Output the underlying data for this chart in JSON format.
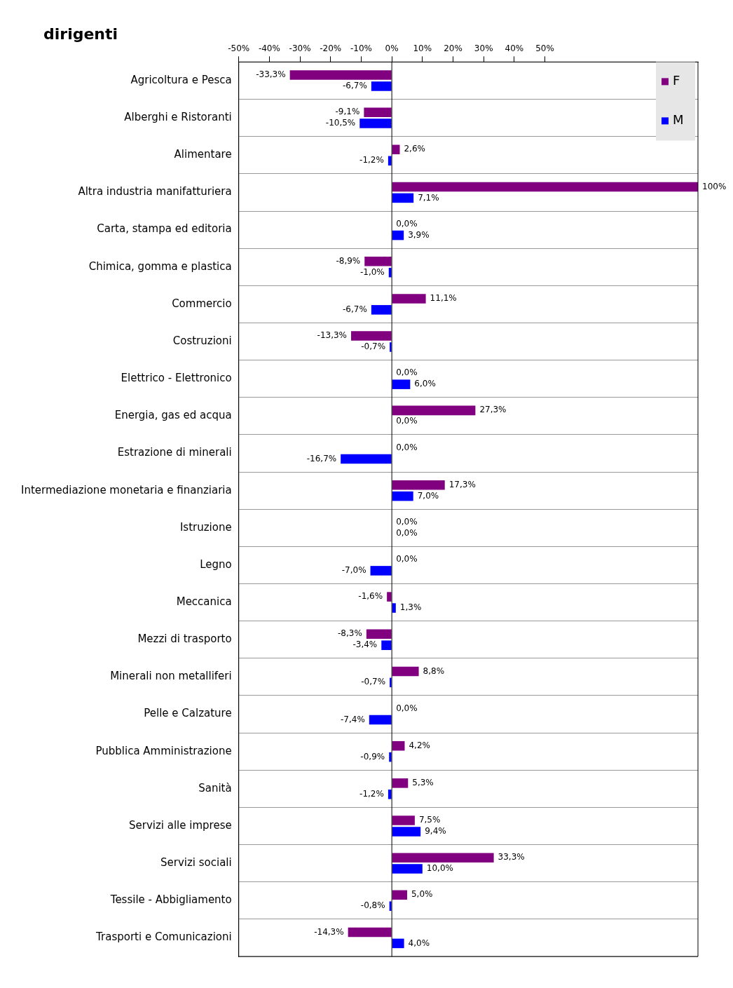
{
  "chart_data": {
    "type": "bar",
    "orientation": "horizontal",
    "title": "dirigenti",
    "categories": [
      "Agricoltura e Pesca",
      "Alberghi e Ristoranti",
      "Alimentare",
      "Altra industria manifatturiera",
      "Carta, stampa ed editoria",
      "Chimica, gomma e plastica",
      "Commercio",
      "Costruzioni",
      "Elettrico - Elettronico",
      "Energia, gas ed acqua",
      "Estrazione di minerali",
      "Intermediazione monetaria e finanziaria",
      "Istruzione",
      "Legno",
      "Meccanica",
      "Mezzi di trasporto",
      "Minerali non metalliferi",
      "Pelle e Calzature",
      "Pubblica Amministrazione",
      "Sanità",
      "Servizi alle imprese",
      "Servizi sociali",
      "Tessile - Abbigliamento",
      "Trasporti e Comunicazioni"
    ],
    "series": [
      {
        "name": "F",
        "color": "#800080",
        "values": [
          -33.3,
          -9.1,
          2.6,
          100,
          0.0,
          -8.9,
          11.1,
          -13.3,
          0.0,
          27.3,
          0.0,
          17.3,
          0.0,
          0.0,
          -1.6,
          -8.3,
          8.8,
          0.0,
          4.2,
          5.3,
          7.5,
          33.3,
          5.0,
          -14.3
        ],
        "value_labels": [
          "-33,3%",
          "-9,1%",
          "2,6%",
          "100%",
          "0,0%",
          "-8,9%",
          "11,1%",
          "-13,3%",
          "0,0%",
          "27,3%",
          "0,0%",
          "17,3%",
          "0,0%",
          "0,0%",
          "-1,6%",
          "-8,3%",
          "8,8%",
          "0,0%",
          "4,2%",
          "5,3%",
          "7,5%",
          "33,3%",
          "5,0%",
          "-14,3%"
        ]
      },
      {
        "name": "M",
        "color": "#0000ff",
        "values": [
          -6.7,
          -10.5,
          -1.2,
          7.1,
          3.9,
          -1.0,
          -6.7,
          -0.7,
          6.0,
          0.0,
          -16.7,
          7.0,
          0.0,
          -7.0,
          1.3,
          -3.4,
          -0.7,
          -7.4,
          -0.9,
          -1.2,
          9.4,
          10.0,
          -0.8,
          4.0
        ],
        "value_labels": [
          "-6,7%",
          "-10,5%",
          "-1,2%",
          "7,1%",
          "3,9%",
          "-1,0%",
          "-6,7%",
          "-0,7%",
          "6,0%",
          "0,0%",
          "-16,7%",
          "7,0%",
          "0,0%",
          "-7,0%",
          "1,3%",
          "-3,4%",
          "-0,7%",
          "-7,4%",
          "-0,9%",
          "-1,2%",
          "9,4%",
          "10,0%",
          "-0,8%",
          "4,0%"
        ]
      }
    ],
    "xlim": [
      -50,
      100
    ],
    "xticks": [
      {
        "value": -50,
        "label": "-50%"
      },
      {
        "value": -40,
        "label": "-40%"
      },
      {
        "value": -30,
        "label": "-30%"
      },
      {
        "value": -20,
        "label": "-20%"
      },
      {
        "value": -10,
        "label": "-10%"
      },
      {
        "value": 0,
        "label": "0%"
      },
      {
        "value": 10,
        "label": "10%"
      },
      {
        "value": 20,
        "label": "20%"
      },
      {
        "value": 30,
        "label": "30%"
      },
      {
        "value": 40,
        "label": "40%"
      },
      {
        "value": 50,
        "label": "50%"
      }
    ],
    "grid": "y",
    "legend": "top right"
  }
}
